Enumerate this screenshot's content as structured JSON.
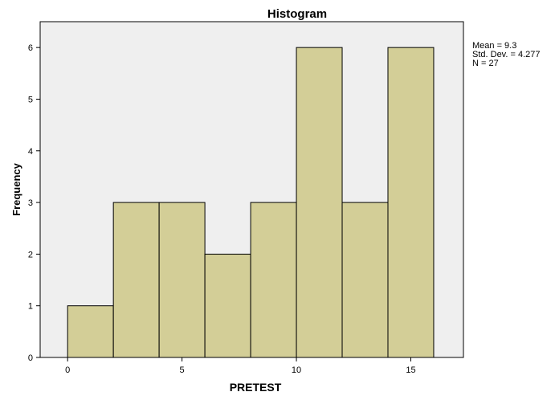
{
  "chart_data": {
    "type": "bar",
    "title": "Histogram",
    "xlabel": "PRETEST",
    "ylabel": "Frequency",
    "bins": [
      {
        "start": 0,
        "end": 2,
        "count": 1
      },
      {
        "start": 2,
        "end": 4,
        "count": 3
      },
      {
        "start": 4,
        "end": 6,
        "count": 3
      },
      {
        "start": 6,
        "end": 8,
        "count": 2
      },
      {
        "start": 8,
        "end": 10,
        "count": 3
      },
      {
        "start": 10,
        "end": 12,
        "count": 6
      },
      {
        "start": 12,
        "end": 14,
        "count": 3
      },
      {
        "start": 14,
        "end": 16,
        "count": 6
      }
    ],
    "xticks": [
      0,
      5,
      10,
      15
    ],
    "yticks": [
      0,
      1,
      2,
      3,
      4,
      5,
      6
    ],
    "xlim": [
      -1.2,
      17.3
    ],
    "ylim": [
      0,
      6.5
    ],
    "grid": false,
    "colors": {
      "bar": "#d3ce97",
      "plot_background": "#efefef"
    },
    "stats": [
      "Mean = 9.3",
      "Std. Dev. = 4.277",
      "N = 27"
    ]
  }
}
